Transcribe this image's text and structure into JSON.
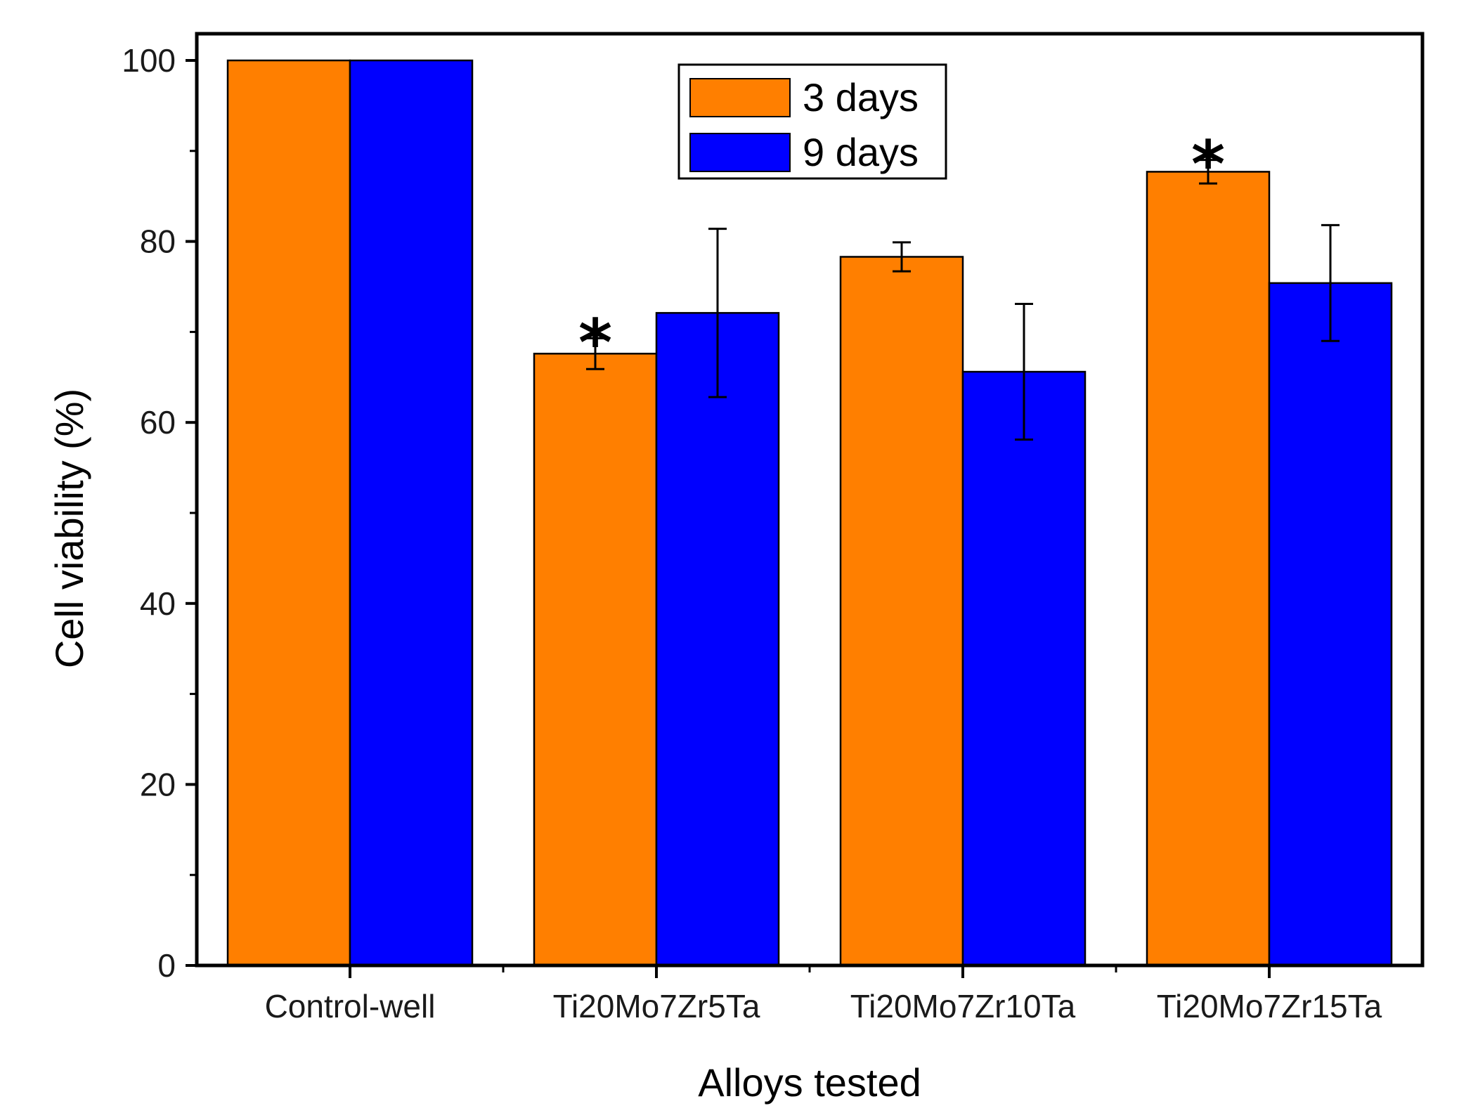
{
  "chart_data": {
    "type": "bar",
    "title": "",
    "xlabel": "Alloys tested",
    "ylabel": "Cell viability (%)",
    "ylim": [
      0,
      100
    ],
    "yticks": [
      0,
      20,
      40,
      60,
      80,
      100
    ],
    "yticks_minor": [
      10,
      30,
      50,
      70,
      90
    ],
    "grid": false,
    "legend_position": "top-center",
    "categories": [
      "Control-well",
      "Ti20Mo7Zr5Ta",
      "Ti20Mo7Zr10Ta",
      "Ti20Mo7Zr15Ta"
    ],
    "series": [
      {
        "name": "3 days",
        "color": "#ff7f00",
        "values": [
          100,
          67.6,
          78.3,
          87.7
        ],
        "errors": [
          0,
          1.7,
          1.6,
          1.3
        ]
      },
      {
        "name": "9 days",
        "color": "#0000ff",
        "values": [
          100,
          72.1,
          65.6,
          75.4
        ],
        "errors": [
          0,
          9.3,
          7.5,
          6.4
        ]
      }
    ],
    "annotations": [
      {
        "text": "*",
        "category": "Ti20Mo7Zr5Ta",
        "series": "3 days"
      },
      {
        "text": "*",
        "category": "Ti20Mo7Zr15Ta",
        "series": "3 days"
      }
    ]
  }
}
